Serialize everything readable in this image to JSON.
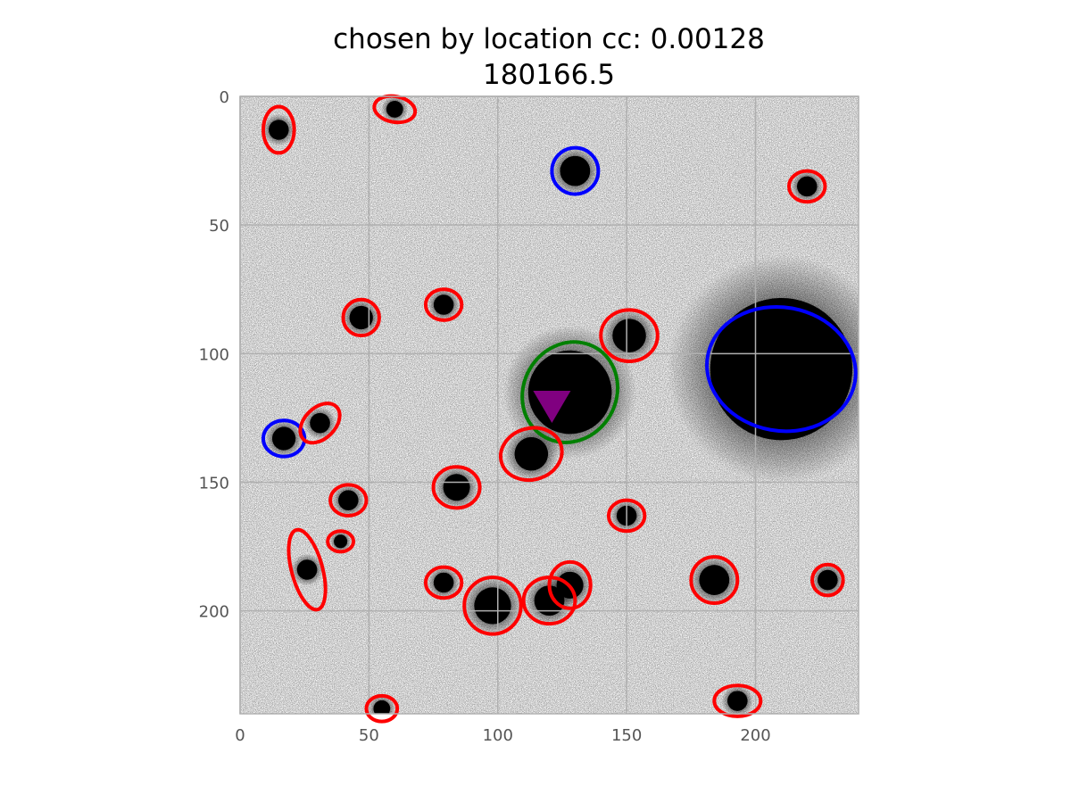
{
  "figure": {
    "title_line1": "chosen by location cc: 0.00128",
    "title_line2": "180166.5",
    "x_ticks": [
      "0",
      "50",
      "100",
      "150",
      "200"
    ],
    "y_ticks": [
      "0",
      "50",
      "100",
      "150",
      "200"
    ],
    "x_tick_values": [
      0,
      50,
      100,
      150,
      200
    ],
    "y_tick_values": [
      0,
      50,
      100,
      150,
      200
    ],
    "axis_range": [
      0,
      240
    ],
    "grid": true,
    "image_kind": "astronomical cutout, inverted grayscale",
    "colors": {
      "source_marker": "#ff0000",
      "star_marker": "#0000ff",
      "host_marker": "#008000",
      "transient_marker": "#800080"
    }
  },
  "sources": [
    {
      "kind": "host",
      "x": 128,
      "y": 115,
      "a": 18,
      "b": 20,
      "angle": 30,
      "color": "#008000"
    },
    {
      "kind": "star",
      "x": 130,
      "y": 29,
      "a": 9,
      "b": 9,
      "angle": 0,
      "color": "#0000ff"
    },
    {
      "kind": "star",
      "x": 210,
      "y": 106,
      "a": 29,
      "b": 24,
      "angle": 10,
      "color": "#0000ff"
    },
    {
      "kind": "star",
      "x": 17,
      "y": 133,
      "a": 8,
      "b": 7,
      "angle": 0,
      "color": "#0000ff"
    },
    {
      "kind": "galaxy",
      "x": 15,
      "y": 13,
      "a": 6,
      "b": 9,
      "angle": 0,
      "color": "#ff0000"
    },
    {
      "kind": "galaxy",
      "x": 60,
      "y": 5,
      "a": 8,
      "b": 5,
      "angle": 10,
      "color": "#ff0000"
    },
    {
      "kind": "galaxy",
      "x": 220,
      "y": 35,
      "a": 7,
      "b": 6,
      "angle": 0,
      "color": "#ff0000"
    },
    {
      "kind": "galaxy",
      "x": 47,
      "y": 86,
      "a": 7,
      "b": 7,
      "angle": 0,
      "color": "#ff0000"
    },
    {
      "kind": "galaxy",
      "x": 79,
      "y": 81,
      "a": 7,
      "b": 6,
      "angle": 0,
      "color": "#ff0000"
    },
    {
      "kind": "galaxy",
      "x": 151,
      "y": 93,
      "a": 11,
      "b": 10,
      "angle": 0,
      "color": "#ff0000"
    },
    {
      "kind": "galaxy",
      "x": 31,
      "y": 127,
      "a": 9,
      "b": 6,
      "angle": -45,
      "color": "#ff0000"
    },
    {
      "kind": "galaxy",
      "x": 113,
      "y": 139,
      "a": 12,
      "b": 10,
      "angle": -15,
      "color": "#ff0000"
    },
    {
      "kind": "galaxy",
      "x": 42,
      "y": 157,
      "a": 7,
      "b": 6,
      "angle": 0,
      "color": "#ff0000"
    },
    {
      "kind": "galaxy",
      "x": 84,
      "y": 152,
      "a": 9,
      "b": 8,
      "angle": 0,
      "color": "#ff0000"
    },
    {
      "kind": "galaxy",
      "x": 150,
      "y": 163,
      "a": 7,
      "b": 6,
      "angle": 0,
      "color": "#ff0000"
    },
    {
      "kind": "galaxy",
      "x": 39,
      "y": 173,
      "a": 5,
      "b": 4,
      "angle": 0,
      "color": "#ff0000"
    },
    {
      "kind": "galaxy",
      "x": 26,
      "y": 184,
      "a": 6,
      "b": 16,
      "angle": -15,
      "color": "#ff0000"
    },
    {
      "kind": "galaxy",
      "x": 79,
      "y": 189,
      "a": 7,
      "b": 6,
      "angle": 0,
      "color": "#ff0000"
    },
    {
      "kind": "galaxy",
      "x": 98,
      "y": 198,
      "a": 11,
      "b": 11,
      "angle": 0,
      "color": "#ff0000"
    },
    {
      "kind": "galaxy",
      "x": 120,
      "y": 196,
      "a": 10,
      "b": 9,
      "angle": 0,
      "color": "#ff0000"
    },
    {
      "kind": "galaxy",
      "x": 128,
      "y": 190,
      "a": 8,
      "b": 9,
      "angle": 0,
      "color": "#ff0000"
    },
    {
      "kind": "galaxy",
      "x": 184,
      "y": 188,
      "a": 9,
      "b": 9,
      "angle": 0,
      "color": "#ff0000"
    },
    {
      "kind": "galaxy",
      "x": 228,
      "y": 188,
      "a": 6,
      "b": 6,
      "angle": 0,
      "color": "#ff0000"
    },
    {
      "kind": "galaxy",
      "x": 55,
      "y": 238,
      "a": 6,
      "b": 5,
      "angle": 0,
      "color": "#ff0000"
    },
    {
      "kind": "galaxy",
      "x": 193,
      "y": 235,
      "a": 9,
      "b": 6,
      "angle": 0,
      "color": "#ff0000"
    }
  ],
  "transient": {
    "x": 121,
    "y": 120,
    "color": "#800080"
  }
}
